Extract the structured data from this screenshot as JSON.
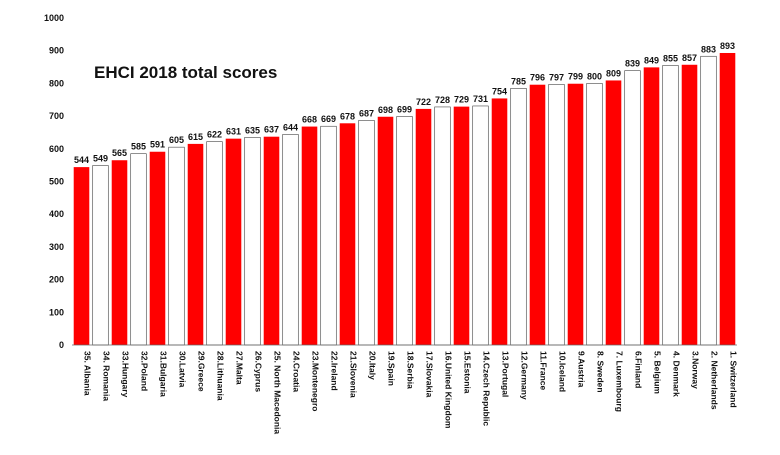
{
  "chart_data": {
    "type": "bar",
    "title": "EHCI 2018 total scores",
    "xlabel": "",
    "ylabel": "",
    "ylim": [
      0,
      1000
    ],
    "yticks": [
      0,
      100,
      200,
      300,
      400,
      500,
      600,
      700,
      800,
      900,
      1000
    ],
    "grid": false,
    "bar_colors": {
      "filled": "#ff0000",
      "alternate": "#ffffff",
      "edge": "#444444"
    },
    "categories": [
      "35. Albania",
      "34. Romania",
      "33.Hungary",
      "32.Poland",
      "31.Bulgaria",
      "30.Latvia",
      "29.Greece",
      "28.Lithuania",
      "27.Malta",
      "26.Cyprus",
      "25. North Macedonia",
      "24.Croatia",
      "23.Montenegro",
      "22.Ireland",
      "21.Slovenia",
      "20.Italy",
      "19.Spain",
      "18.Serbia",
      "17.Slovakia",
      "16.United Kingdom",
      "15.Estonia",
      "14.Czech Republic",
      "13.Portugal",
      "12.Germany",
      "11.France",
      "10.Iceland",
      "9.Austria",
      "8. Sweden",
      "7. Luxembourg",
      "6.Finland",
      "5. Belgium",
      "4. Denmark",
      "3.Norway",
      "2. Netherlands",
      "1. Switzerland"
    ],
    "values": [
      544,
      549,
      565,
      585,
      591,
      605,
      615,
      622,
      631,
      635,
      637,
      644,
      668,
      669,
      678,
      687,
      698,
      699,
      722,
      728,
      729,
      731,
      754,
      785,
      796,
      797,
      799,
      800,
      809,
      839,
      849,
      855,
      857,
      883,
      893
    ],
    "filled": [
      true,
      false,
      true,
      false,
      true,
      false,
      true,
      false,
      true,
      false,
      true,
      false,
      true,
      false,
      true,
      false,
      true,
      false,
      true,
      false,
      true,
      false,
      true,
      false,
      true,
      false,
      true,
      false,
      true,
      false,
      true,
      false,
      true,
      false,
      true
    ]
  }
}
